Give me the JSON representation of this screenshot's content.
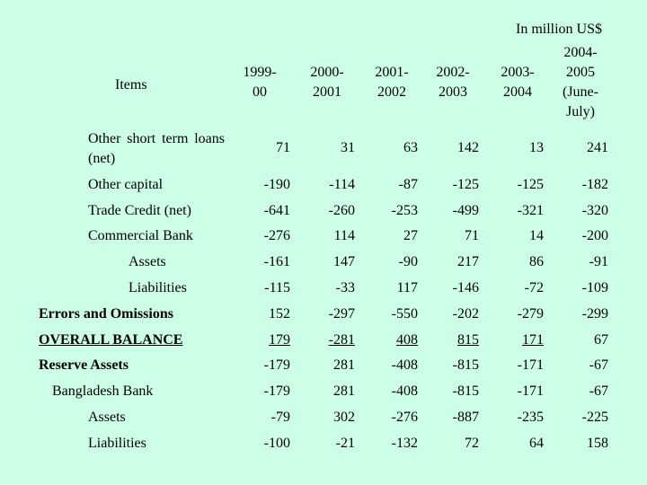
{
  "unit_note": "In million US$",
  "header": {
    "items_label": "Items",
    "columns": [
      "1999-\n00",
      "2000-\n2001",
      "2001-\n2002",
      "2002-\n2003",
      "2003-\n2004",
      "2004-\n2005\n(June-\nJuly)"
    ]
  },
  "rows": [
    {
      "label": "Other short term loans (net)",
      "values": [
        "71",
        "31",
        "63",
        "142",
        "13",
        "241"
      ]
    },
    {
      "label": "Other capital",
      "values": [
        "-190",
        "-114",
        "-87",
        "-125",
        "-125",
        "-182"
      ]
    },
    {
      "label": "Trade Credit (net)",
      "values": [
        "-641",
        "-260",
        "-253",
        "-499",
        "-321",
        "-320"
      ]
    },
    {
      "label": "Commercial Bank",
      "values": [
        "-276",
        "114",
        "27",
        "71",
        "14",
        "-200"
      ]
    },
    {
      "label": "Assets",
      "values": [
        "-161",
        "147",
        "-90",
        "217",
        "86",
        "-91"
      ]
    },
    {
      "label": "Liabilities",
      "values": [
        "-115",
        "-33",
        "117",
        "-146",
        "-72",
        "-109"
      ]
    },
    {
      "label": "Errors and Omissions",
      "values": [
        "152",
        "-297",
        "-550",
        "-202",
        "-279",
        "-299"
      ]
    },
    {
      "label": "OVERALL BALANCE",
      "values": [
        "179",
        "-281",
        "408",
        "815",
        "171",
        "67"
      ]
    },
    {
      "label": "Reserve Assets",
      "values": [
        "-179",
        "281",
        "-408",
        "-815",
        "-171",
        "-67"
      ]
    },
    {
      "label": "Bangladesh Bank",
      "values": [
        "-179",
        "281",
        "-408",
        "-815",
        "-171",
        "-67"
      ]
    },
    {
      "label": "Assets",
      "values": [
        "-79",
        "302",
        "-276",
        "-887",
        "-235",
        "-225"
      ]
    },
    {
      "label": "Liabilities",
      "values": [
        "-100",
        "-21",
        "-132",
        "72",
        "64",
        "158"
      ]
    }
  ]
}
